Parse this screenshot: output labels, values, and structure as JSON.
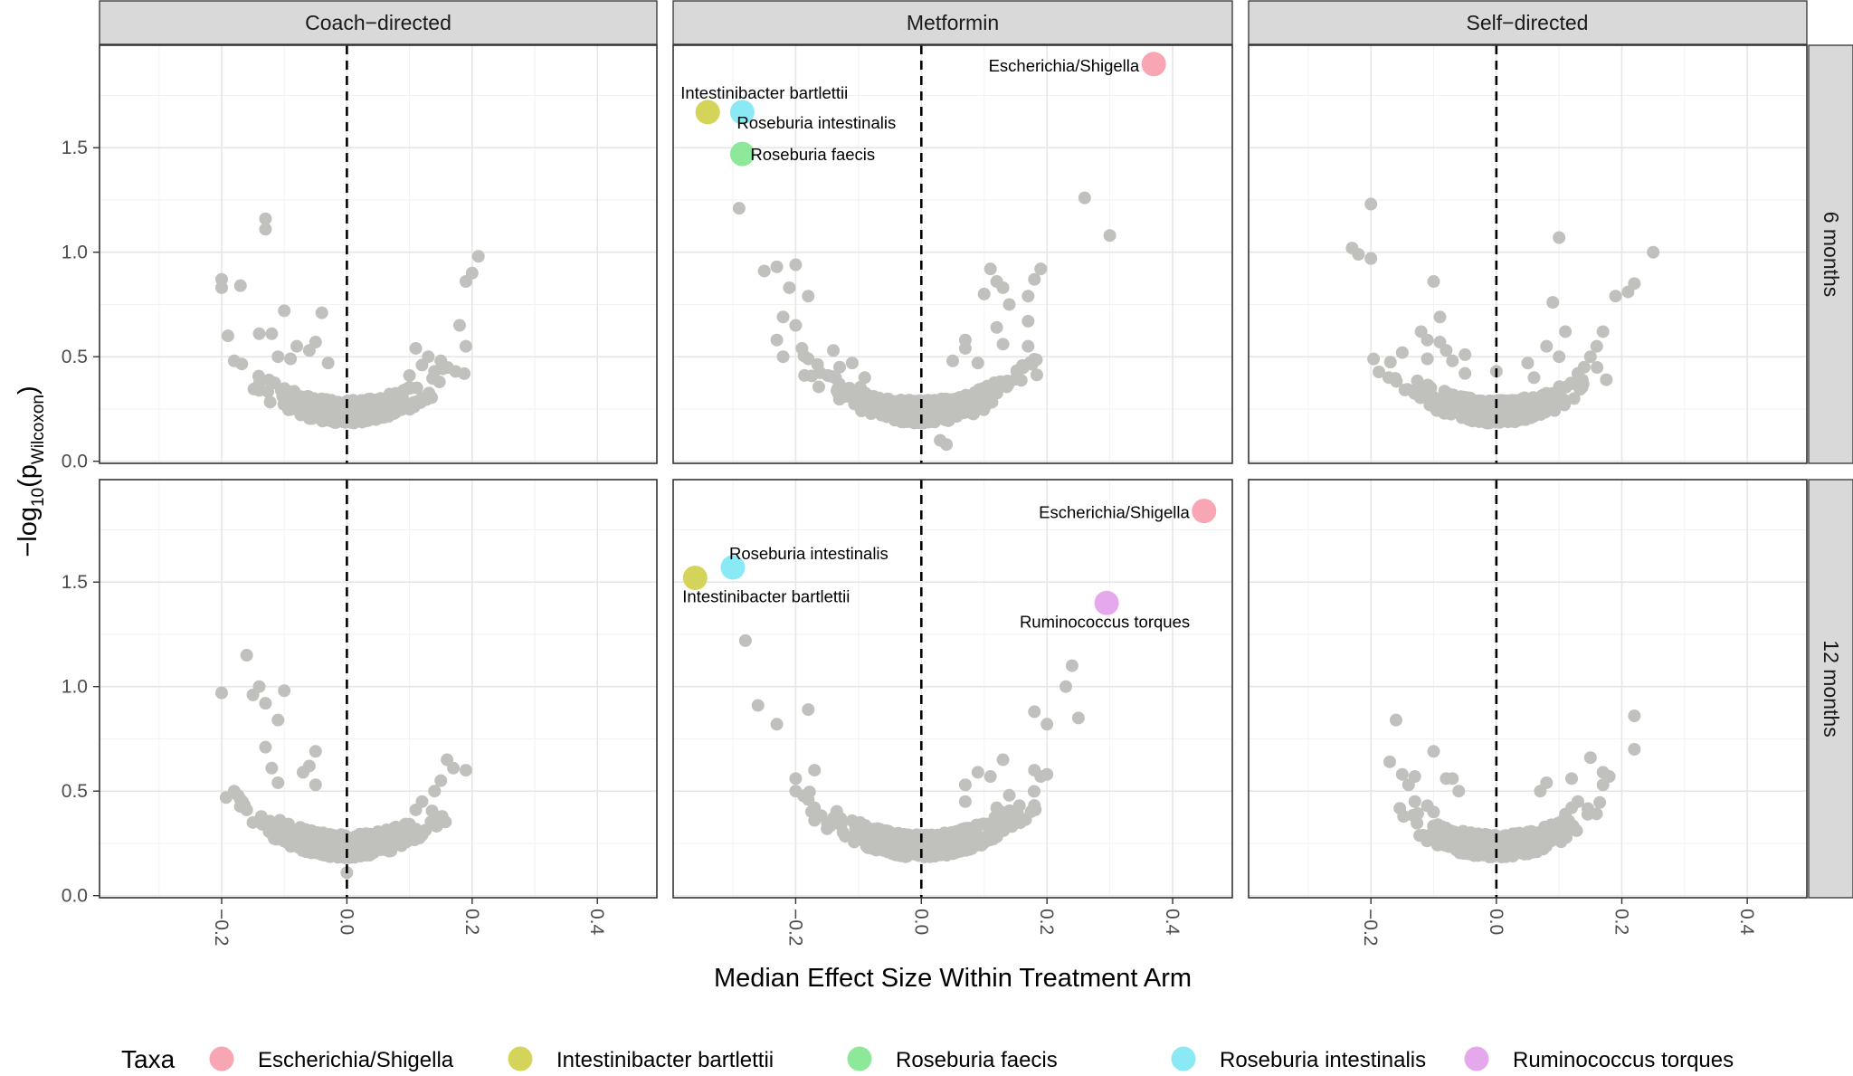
{
  "chart_data": {
    "type": "scatter",
    "title": "",
    "xlabel": "Median Effect Size Within Treatment Arm",
    "ylabel_main": "−log",
    "ylabel_sub1": "10",
    "ylabel_mid": "(p",
    "ylabel_sub2": "Wilcoxon",
    "ylabel_end": ")",
    "xlim": [
      -0.395,
      0.495
    ],
    "ylim": [
      -0.01,
      1.99
    ],
    "x_ticks": [
      -0.2,
      0.0,
      0.2,
      0.4
    ],
    "x_tick_labels": [
      "−0.2",
      "0.0",
      "0.2",
      "0.4"
    ],
    "y_ticks": [
      0.0,
      0.5,
      1.0,
      1.5
    ],
    "y_tick_labels": [
      "0.0",
      "0.5",
      "1.0",
      "1.5"
    ],
    "grid": true,
    "reference_line_x": 0,
    "columns": [
      "Coach−directed",
      "Metformin",
      "Self−directed"
    ],
    "rows": [
      "6 months",
      "12 months"
    ],
    "background_color": "#c0c0bc",
    "legend": {
      "title": "Taxa",
      "position": "bottom",
      "items": [
        {
          "label": "Escherichia/Shigella",
          "color": "#f8a5b4"
        },
        {
          "label": "Intestinibacter bartlettii",
          "color": "#d4d45a"
        },
        {
          "label": "Roseburia faecis",
          "color": "#8de89a"
        },
        {
          "label": "Roseburia intestinalis",
          "color": "#8ae9f5"
        },
        {
          "label": "Ruminococcus torques",
          "color": "#e6a8ec"
        }
      ]
    },
    "panels": [
      {
        "column": "Coach−directed",
        "row": "6 months",
        "background": [
          [
            -0.2,
            0.83
          ],
          [
            -0.17,
            0.84
          ],
          [
            -0.19,
            0.6
          ],
          [
            -0.13,
            1.16
          ],
          [
            -0.13,
            1.11
          ],
          [
            -0.18,
            0.48
          ],
          [
            -0.1,
            0.72
          ],
          [
            -0.14,
            0.61
          ],
          [
            -0.12,
            0.61
          ],
          [
            -0.08,
            0.55
          ],
          [
            -0.06,
            0.53
          ],
          [
            -0.05,
            0.57
          ],
          [
            -0.09,
            0.49
          ],
          [
            -0.03,
            0.47
          ],
          [
            -0.04,
            0.71
          ],
          [
            -0.11,
            0.5
          ],
          [
            -0.2,
            0.87
          ],
          [
            0.21,
            0.98
          ],
          [
            0.2,
            0.9
          ],
          [
            0.19,
            0.86
          ],
          [
            0.18,
            0.65
          ],
          [
            0.19,
            0.55
          ],
          [
            0.13,
            0.5
          ],
          [
            0.15,
            0.48
          ],
          [
            0.11,
            0.54
          ],
          [
            0.12,
            0.46
          ],
          [
            0.14,
            0.43
          ],
          [
            0.1,
            0.41
          ]
        ],
        "highlights": []
      },
      {
        "column": "Metformin",
        "row": "6 months",
        "background": [
          [
            -0.29,
            1.21
          ],
          [
            -0.25,
            0.91
          ],
          [
            -0.23,
            0.93
          ],
          [
            -0.2,
            0.94
          ],
          [
            -0.21,
            0.83
          ],
          [
            -0.18,
            0.79
          ],
          [
            -0.22,
            0.69
          ],
          [
            -0.2,
            0.65
          ],
          [
            -0.23,
            0.58
          ],
          [
            -0.22,
            0.5
          ],
          [
            -0.19,
            0.54
          ],
          [
            -0.18,
            0.49
          ],
          [
            -0.14,
            0.53
          ],
          [
            -0.11,
            0.47
          ],
          [
            -0.13,
            0.45
          ],
          [
            -0.09,
            0.4
          ],
          [
            0.11,
            0.92
          ],
          [
            0.12,
            0.86
          ],
          [
            0.13,
            0.83
          ],
          [
            0.1,
            0.8
          ],
          [
            0.14,
            0.75
          ],
          [
            0.17,
            0.79
          ],
          [
            0.18,
            0.87
          ],
          [
            0.19,
            0.92
          ],
          [
            0.17,
            0.67
          ],
          [
            0.12,
            0.64
          ],
          [
            0.13,
            0.56
          ],
          [
            0.17,
            0.55
          ],
          [
            0.07,
            0.58
          ],
          [
            0.07,
            0.54
          ],
          [
            0.09,
            0.47
          ],
          [
            0.26,
            1.26
          ],
          [
            0.3,
            1.08
          ],
          [
            0.03,
            0.1
          ],
          [
            0.04,
            0.08
          ],
          [
            0.05,
            0.48
          ]
        ],
        "highlights": [
          {
            "taxon": "Escherichia/Shigella",
            "x": 0.37,
            "y": 1.9,
            "label": "Escherichia/Shigella",
            "label_anchor": "end"
          },
          {
            "taxon": "Intestinibacter bartlettii",
            "x": -0.34,
            "y": 1.67,
            "label": "Intestinibacter bartlettii",
            "label_anchor": "start"
          },
          {
            "taxon": "Roseburia intestinalis",
            "x": -0.285,
            "y": 1.67,
            "label": "Roseburia intestinalis",
            "label_anchor": "start"
          },
          {
            "taxon": "Roseburia faecis",
            "x": -0.285,
            "y": 1.47,
            "label": "Roseburia faecis",
            "label_anchor": "start"
          }
        ]
      },
      {
        "column": "Self−directed",
        "row": "6 months",
        "background": [
          [
            -0.2,
            1.23
          ],
          [
            -0.2,
            0.97
          ],
          [
            -0.23,
            1.02
          ],
          [
            -0.22,
            0.99
          ],
          [
            -0.1,
            0.86
          ],
          [
            -0.09,
            0.69
          ],
          [
            -0.12,
            0.62
          ],
          [
            -0.11,
            0.58
          ],
          [
            -0.09,
            0.57
          ],
          [
            -0.08,
            0.53
          ],
          [
            -0.05,
            0.51
          ],
          [
            -0.07,
            0.48
          ],
          [
            -0.11,
            0.49
          ],
          [
            -0.05,
            0.42
          ],
          [
            0.0,
            0.43
          ],
          [
            -0.15,
            0.52
          ],
          [
            0.1,
            1.07
          ],
          [
            0.09,
            0.76
          ],
          [
            0.11,
            0.62
          ],
          [
            0.08,
            0.55
          ],
          [
            0.1,
            0.5
          ],
          [
            0.05,
            0.47
          ],
          [
            0.06,
            0.4
          ],
          [
            0.22,
            0.85
          ],
          [
            0.21,
            0.81
          ],
          [
            0.19,
            0.79
          ],
          [
            0.25,
            1.0
          ],
          [
            0.17,
            0.62
          ],
          [
            0.16,
            0.55
          ],
          [
            0.15,
            0.5
          ],
          [
            0.14,
            0.45
          ],
          [
            0.13,
            0.42
          ]
        ],
        "highlights": []
      },
      {
        "column": "Coach−directed",
        "row": "12 months",
        "background": [
          [
            -0.2,
            0.97
          ],
          [
            -0.16,
            1.15
          ],
          [
            -0.14,
            1.0
          ],
          [
            -0.15,
            0.96
          ],
          [
            -0.13,
            0.92
          ],
          [
            -0.1,
            0.98
          ],
          [
            -0.11,
            0.84
          ],
          [
            -0.13,
            0.71
          ],
          [
            -0.12,
            0.61
          ],
          [
            -0.11,
            0.54
          ],
          [
            -0.07,
            0.59
          ],
          [
            -0.05,
            0.53
          ],
          [
            -0.06,
            0.62
          ],
          [
            -0.05,
            0.69
          ],
          [
            -0.18,
            0.5
          ],
          [
            -0.17,
            0.46
          ],
          [
            -0.16,
            0.41
          ],
          [
            -0.15,
            0.35
          ],
          [
            0.0,
            0.11
          ],
          [
            0.16,
            0.65
          ],
          [
            0.17,
            0.61
          ],
          [
            0.19,
            0.6
          ],
          [
            0.15,
            0.55
          ],
          [
            0.14,
            0.5
          ],
          [
            0.12,
            0.45
          ],
          [
            0.11,
            0.41
          ]
        ],
        "highlights": []
      },
      {
        "column": "Metformin",
        "row": "12 months",
        "background": [
          [
            -0.28,
            1.22
          ],
          [
            -0.26,
            0.91
          ],
          [
            -0.23,
            0.82
          ],
          [
            -0.18,
            0.89
          ],
          [
            -0.17,
            0.6
          ],
          [
            -0.2,
            0.56
          ],
          [
            -0.2,
            0.5
          ],
          [
            -0.18,
            0.46
          ],
          [
            -0.17,
            0.42
          ],
          [
            -0.17,
            0.36
          ],
          [
            -0.15,
            0.32
          ],
          [
            0.24,
            1.1
          ],
          [
            0.23,
            1.0
          ],
          [
            0.25,
            0.85
          ],
          [
            0.2,
            0.82
          ],
          [
            0.18,
            0.88
          ],
          [
            0.13,
            0.65
          ],
          [
            0.09,
            0.59
          ],
          [
            0.11,
            0.57
          ],
          [
            0.07,
            0.53
          ],
          [
            0.07,
            0.45
          ],
          [
            0.18,
            0.6
          ],
          [
            0.19,
            0.57
          ],
          [
            0.2,
            0.58
          ],
          [
            0.14,
            0.48
          ],
          [
            0.12,
            0.42
          ]
        ],
        "highlights": [
          {
            "taxon": "Escherichia/Shigella",
            "x": 0.45,
            "y": 1.84,
            "label": "Escherichia/Shigella",
            "label_anchor": "end"
          },
          {
            "taxon": "Intestinibacter bartlettii",
            "x": -0.36,
            "y": 1.52,
            "label": "Intestinibacter bartlettii",
            "label_anchor": "start"
          },
          {
            "taxon": "Roseburia intestinalis",
            "x": -0.3,
            "y": 1.57,
            "label": "Roseburia intestinalis",
            "label_anchor": "start"
          },
          {
            "taxon": "Ruminococcus torques",
            "x": 0.295,
            "y": 1.4,
            "label": "Ruminococcus torques",
            "label_anchor": "end"
          }
        ]
      },
      {
        "column": "Self−directed",
        "row": "12 months",
        "background": [
          [
            -0.16,
            0.84
          ],
          [
            -0.1,
            0.69
          ],
          [
            -0.15,
            0.58
          ],
          [
            -0.14,
            0.53
          ],
          [
            -0.13,
            0.57
          ],
          [
            -0.08,
            0.56
          ],
          [
            -0.07,
            0.56
          ],
          [
            -0.06,
            0.5
          ],
          [
            -0.17,
            0.64
          ],
          [
            -0.13,
            0.45
          ],
          [
            -0.11,
            0.43
          ],
          [
            -0.1,
            0.4
          ],
          [
            0.22,
            0.86
          ],
          [
            0.22,
            0.7
          ],
          [
            0.15,
            0.66
          ],
          [
            0.17,
            0.59
          ],
          [
            0.18,
            0.57
          ],
          [
            0.17,
            0.53
          ],
          [
            0.12,
            0.56
          ],
          [
            0.08,
            0.54
          ],
          [
            0.07,
            0.5
          ],
          [
            0.13,
            0.45
          ],
          [
            0.12,
            0.42
          ],
          [
            0.11,
            0.39
          ]
        ],
        "highlights": []
      }
    ]
  }
}
